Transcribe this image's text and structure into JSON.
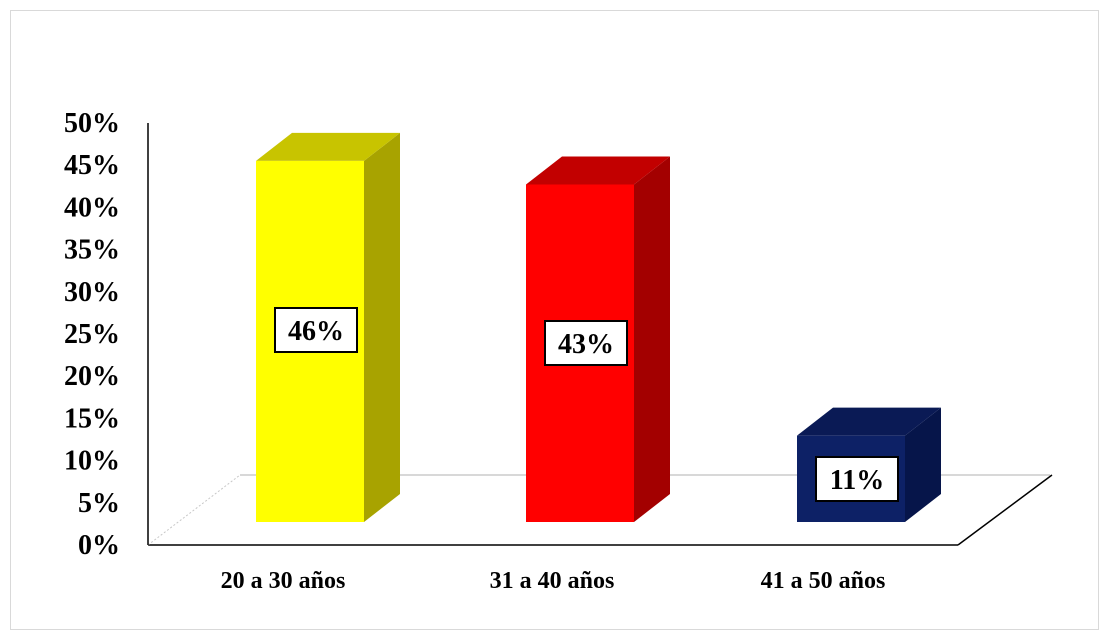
{
  "chart_data": {
    "type": "bar",
    "title": "",
    "xlabel": "",
    "ylabel": "",
    "categories": [
      "20 a 30 años",
      "31 a 40 años",
      "41 a 50 años"
    ],
    "series": [
      {
        "values": [
          46,
          43,
          11
        ],
        "data_labels": [
          "46%",
          "43%",
          "11%"
        ]
      }
    ],
    "ylim": [
      0,
      50
    ],
    "y_ticks": [
      "0%",
      "5%",
      "10%",
      "15%",
      "20%",
      "25%",
      "30%",
      "35%",
      "40%",
      "45%",
      "50%"
    ],
    "bar_colors": [
      "#ffff00",
      "#ff0000",
      "#0d2166"
    ],
    "side_colors": [
      "#a8a300",
      "#a30000",
      "#06154a"
    ],
    "top_colors": [
      "#c8c400",
      "#c20000",
      "#0a1a55"
    ],
    "style": "3d-column",
    "grid": false,
    "legend": "none"
  }
}
